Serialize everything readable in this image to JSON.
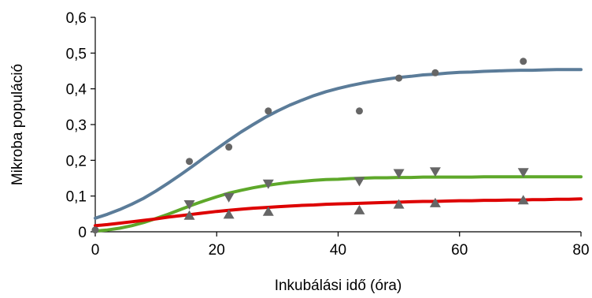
{
  "chart_data": {
    "type": "line",
    "title": "",
    "xlabel": "Inkubálási idő (óra)",
    "ylabel": "Mikroba populáció",
    "xlim": [
      0,
      80
    ],
    "ylim": [
      0,
      0.6
    ],
    "x_ticks": [
      "0",
      "20",
      "40",
      "60",
      "80"
    ],
    "y_ticks": [
      "0",
      "0,1",
      "0,2",
      "0,3",
      "0,4",
      "0,5",
      "0,6"
    ],
    "grid": false,
    "legend": "none",
    "series": [
      {
        "marker": "circle",
        "line_color": "#5B7C99",
        "marker_color": "#666666",
        "points": {
          "x": [
            0,
            15.5,
            22,
            28.5,
            43.5,
            50,
            56,
            70.5
          ],
          "y": [
            0.005,
            0.197,
            0.237,
            0.338,
            0.338,
            0.43,
            0.445,
            0.477
          ]
        },
        "curve": {
          "x": [
            0,
            2,
            4,
            6,
            8,
            10,
            12,
            14,
            16,
            18,
            20,
            22,
            24,
            26,
            28,
            30,
            32,
            34,
            36,
            38,
            40,
            42,
            44,
            46,
            48,
            50,
            52,
            54,
            56,
            58,
            60,
            62,
            64,
            66,
            68,
            70,
            72,
            74,
            76,
            78,
            80
          ],
          "y": [
            0.038,
            0.049,
            0.062,
            0.077,
            0.094,
            0.114,
            0.136,
            0.159,
            0.183,
            0.208,
            0.232,
            0.256,
            0.279,
            0.3,
            0.32,
            0.338,
            0.354,
            0.368,
            0.381,
            0.392,
            0.401,
            0.409,
            0.416,
            0.422,
            0.427,
            0.432,
            0.435,
            0.439,
            0.441,
            0.444,
            0.446,
            0.447,
            0.449,
            0.45,
            0.451,
            0.452,
            0.452,
            0.453,
            0.454,
            0.454,
            0.454
          ]
        }
      },
      {
        "marker": "triangle-down",
        "line_color": "#5EA82A",
        "marker_color": "#666666",
        "points": {
          "x": [
            15.5,
            22,
            28.5,
            43.5,
            50,
            56,
            70.5
          ],
          "y": [
            0.075,
            0.095,
            0.133,
            0.14,
            0.162,
            0.167,
            0.165
          ]
        },
        "curve": {
          "x": [
            0,
            2,
            4,
            6,
            8,
            10,
            12,
            14,
            16,
            18,
            20,
            22,
            24,
            26,
            28,
            30,
            32,
            34,
            36,
            38,
            40,
            42,
            44,
            46,
            48,
            50,
            52,
            54,
            56,
            58,
            60,
            62,
            64,
            66,
            68,
            70,
            72,
            74,
            76,
            78,
            80
          ],
          "y": [
            0.002,
            0.005,
            0.01,
            0.017,
            0.026,
            0.037,
            0.049,
            0.062,
            0.075,
            0.087,
            0.098,
            0.108,
            0.116,
            0.123,
            0.129,
            0.134,
            0.138,
            0.141,
            0.144,
            0.146,
            0.147,
            0.149,
            0.15,
            0.151,
            0.151,
            0.152,
            0.152,
            0.153,
            0.153,
            0.153,
            0.153,
            0.153,
            0.154,
            0.154,
            0.154,
            0.154,
            0.154,
            0.154,
            0.154,
            0.154,
            0.154
          ]
        }
      },
      {
        "marker": "triangle-up",
        "line_color": "#DD0000",
        "marker_color": "#666666",
        "points": {
          "x": [
            15.5,
            22,
            28.5,
            43.5,
            50,
            56,
            70.5
          ],
          "y": [
            0.047,
            0.05,
            0.058,
            0.062,
            0.078,
            0.082,
            0.09
          ]
        },
        "curve": {
          "x": [
            0,
            2,
            4,
            6,
            8,
            10,
            12,
            14,
            16,
            18,
            20,
            22,
            24,
            26,
            28,
            30,
            32,
            34,
            36,
            38,
            40,
            42,
            44,
            46,
            48,
            50,
            52,
            54,
            56,
            58,
            60,
            62,
            64,
            66,
            68,
            70,
            72,
            74,
            76,
            78,
            80
          ],
          "y": [
            0.017,
            0.02,
            0.024,
            0.028,
            0.032,
            0.036,
            0.041,
            0.045,
            0.049,
            0.053,
            0.057,
            0.06,
            0.063,
            0.066,
            0.068,
            0.07,
            0.072,
            0.074,
            0.075,
            0.077,
            0.078,
            0.079,
            0.08,
            0.081,
            0.082,
            0.083,
            0.084,
            0.085,
            0.085,
            0.086,
            0.087,
            0.087,
            0.088,
            0.088,
            0.089,
            0.089,
            0.09,
            0.09,
            0.091,
            0.091,
            0.092
          ]
        }
      }
    ]
  }
}
